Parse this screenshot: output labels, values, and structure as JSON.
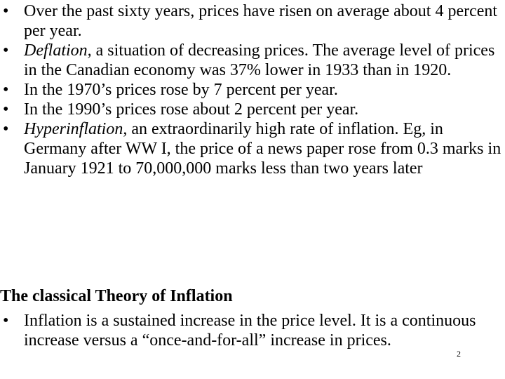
{
  "bullets_top": [
    {
      "text": "Over the past sixty years, prices have risen on average about 4 percent per year."
    },
    {
      "term": "Deflation,",
      "rest": " a situation of decreasing prices. The average level of prices in the Canadian economy was 37% lower in 1933 than in 1920."
    },
    {
      "text": "In the 1970’s prices rose by 7 percent per year."
    },
    {
      "text": "In the 1990’s prices rose about 2 percent per year."
    },
    {
      "term": "Hyperinflation",
      "rest": ", an extraordinarily high rate of inflation. Eg, in Germany after WW I, the price of a news paper rose from 0.3 marks in January 1921 to 70,000,000 marks less than two years later"
    }
  ],
  "section": {
    "title": "The classical Theory of Inflation",
    "bullets": [
      {
        "text": "Inflation is a sustained increase in the price level.  It is a continuous increase versus a “once-and-for-all” increase in prices."
      }
    ]
  },
  "bullet_symbol": "•",
  "slide_number": "2"
}
